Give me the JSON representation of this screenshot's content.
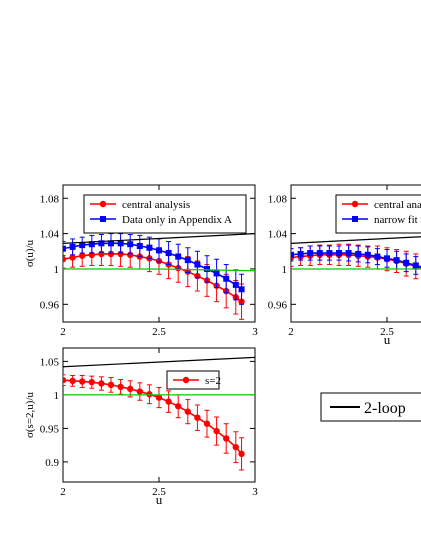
{
  "chart_data": [
    {
      "type": "line",
      "panel": "top-left",
      "xlabel": "",
      "ylabel": "σ(u)/u",
      "xlim": [
        2,
        3
      ],
      "ylim": [
        0.94,
        1.095
      ],
      "xticks": [
        2,
        2.5,
        3
      ],
      "xtick_labels": [
        "2",
        "2.5",
        "3"
      ],
      "yticks": [
        0.96,
        1,
        1.04,
        1.08
      ],
      "ytick_labels": [
        "0.96",
        "1",
        "1.04",
        "1.08"
      ],
      "legend_position": "top",
      "series": [
        {
          "name": "central analysis",
          "color": "#ff0000",
          "marker": "circle",
          "x": [
            2.0,
            2.05,
            2.1,
            2.15,
            2.2,
            2.25,
            2.3,
            2.35,
            2.4,
            2.45,
            2.5,
            2.55,
            2.6,
            2.65,
            2.7,
            2.75,
            2.8,
            2.85,
            2.9,
            2.93
          ],
          "y": [
            1.011,
            1.013,
            1.015,
            1.016,
            1.017,
            1.017,
            1.017,
            1.016,
            1.014,
            1.012,
            1.009,
            1.005,
            1.001,
            0.997,
            0.992,
            0.987,
            0.981,
            0.975,
            0.968,
            0.963
          ],
          "err": [
            0.01,
            0.011,
            0.012,
            0.012,
            0.013,
            0.013,
            0.014,
            0.014,
            0.014,
            0.015,
            0.015,
            0.016,
            0.016,
            0.017,
            0.017,
            0.018,
            0.018,
            0.019,
            0.019,
            0.02
          ]
        },
        {
          "name": "Data only in Appendix A",
          "color": "#0000ff",
          "marker": "square",
          "x": [
            2.0,
            2.05,
            2.1,
            2.15,
            2.2,
            2.25,
            2.3,
            2.35,
            2.4,
            2.45,
            2.5,
            2.55,
            2.6,
            2.65,
            2.7,
            2.75,
            2.8,
            2.85,
            2.9,
            2.93
          ],
          "y": [
            1.023,
            1.025,
            1.027,
            1.028,
            1.029,
            1.029,
            1.029,
            1.028,
            1.026,
            1.024,
            1.021,
            1.018,
            1.014,
            1.01,
            1.005,
            1.0,
            0.995,
            0.989,
            0.982,
            0.977
          ],
          "err": [
            0.008,
            0.009,
            0.009,
            0.01,
            0.01,
            0.011,
            0.011,
            0.011,
            0.012,
            0.012,
            0.013,
            0.013,
            0.014,
            0.014,
            0.015,
            0.015,
            0.016,
            0.016,
            0.017,
            0.017
          ]
        },
        {
          "name": "",
          "color": "#000000",
          "marker": "none",
          "x": [
            2.0,
            3.0
          ],
          "y": [
            1.029,
            1.04
          ]
        },
        {
          "name": "",
          "color": "#00cc00",
          "marker": "none",
          "x": [
            2.0,
            2.5,
            3.0
          ],
          "y": [
            1.0,
            1.0,
            0.998
          ]
        }
      ]
    },
    {
      "type": "line",
      "panel": "top-right",
      "xlabel": "u",
      "ylabel": "",
      "xlim": [
        2,
        3
      ],
      "ylim": [
        0.94,
        1.095
      ],
      "xticks": [
        2,
        2.5
      ],
      "xtick_labels": [
        "2",
        "2.5"
      ],
      "yticks": [
        0.96,
        1,
        1.04,
        1.08
      ],
      "ytick_labels": [
        "0.96",
        "1",
        "1.04",
        "1.08"
      ],
      "legend_position": "top-right",
      "series": [
        {
          "name": "central analysis",
          "color": "#ff0000",
          "marker": "circle",
          "x": [
            2.0,
            2.05,
            2.1,
            2.15,
            2.2,
            2.25,
            2.3,
            2.35,
            2.4,
            2.45,
            2.5,
            2.55,
            2.6,
            2.65,
            2.7
          ],
          "y": [
            1.013,
            1.014,
            1.015,
            1.016,
            1.016,
            1.016,
            1.016,
            1.015,
            1.014,
            1.013,
            1.011,
            1.009,
            1.006,
            1.003,
            1.0
          ],
          "err": [
            0.01,
            0.01,
            0.011,
            0.011,
            0.011,
            0.012,
            0.012,
            0.012,
            0.012,
            0.013,
            0.013,
            0.013,
            0.014,
            0.014,
            0.014
          ]
        },
        {
          "name": "narrow fit r",
          "color": "#0000ff",
          "marker": "square",
          "x": [
            2.0,
            2.05,
            2.1,
            2.15,
            2.2,
            2.25,
            2.3,
            2.35,
            2.4,
            2.45,
            2.5,
            2.55,
            2.6,
            2.65,
            2.7
          ],
          "y": [
            1.016,
            1.017,
            1.018,
            1.018,
            1.018,
            1.018,
            1.018,
            1.017,
            1.016,
            1.014,
            1.012,
            1.01,
            1.007,
            1.004,
            1.001
          ],
          "err": [
            0.007,
            0.007,
            0.008,
            0.008,
            0.008,
            0.008,
            0.009,
            0.009,
            0.009,
            0.009,
            0.01,
            0.01,
            0.01,
            0.01,
            0.011
          ]
        },
        {
          "name": "",
          "color": "#000000",
          "marker": "none",
          "x": [
            2.0,
            3.0
          ],
          "y": [
            1.029,
            1.04
          ]
        },
        {
          "name": "",
          "color": "#00cc00",
          "marker": "none",
          "x": [
            2.0,
            3.0
          ],
          "y": [
            1.0,
            1.0
          ]
        }
      ]
    },
    {
      "type": "line",
      "panel": "bottom-left",
      "xlabel": "u",
      "ylabel": "σ(s=2,u)/u",
      "xlim": [
        2,
        3
      ],
      "ylim": [
        0.87,
        1.07
      ],
      "xticks": [
        2,
        2.5,
        3
      ],
      "xtick_labels": [
        "2",
        "2.5",
        "3"
      ],
      "yticks": [
        0.9,
        0.95,
        1,
        1.05
      ],
      "ytick_labels": [
        "0.9",
        "0.95",
        "1",
        "1.05"
      ],
      "legend_position": "top-right",
      "series": [
        {
          "name": "s=2",
          "color": "#ff0000",
          "marker": "circle",
          "x": [
            2.0,
            2.05,
            2.1,
            2.15,
            2.2,
            2.25,
            2.3,
            2.35,
            2.4,
            2.45,
            2.5,
            2.55,
            2.6,
            2.65,
            2.7,
            2.75,
            2.8,
            2.85,
            2.9,
            2.93
          ],
          "y": [
            1.022,
            1.021,
            1.02,
            1.019,
            1.017,
            1.015,
            1.012,
            1.009,
            1.005,
            1.001,
            0.996,
            0.99,
            0.983,
            0.975,
            0.966,
            0.957,
            0.946,
            0.935,
            0.922,
            0.912
          ],
          "err": [
            0.008,
            0.008,
            0.009,
            0.009,
            0.01,
            0.011,
            0.011,
            0.012,
            0.013,
            0.014,
            0.015,
            0.016,
            0.017,
            0.018,
            0.019,
            0.02,
            0.021,
            0.022,
            0.023,
            0.024
          ]
        },
        {
          "name": "",
          "color": "#000000",
          "marker": "none",
          "x": [
            2.0,
            3.0
          ],
          "y": [
            1.042,
            1.056
          ]
        },
        {
          "name": "",
          "color": "#00cc00",
          "marker": "none",
          "x": [
            2.0,
            3.0
          ],
          "y": [
            1.0,
            1.0
          ]
        }
      ]
    }
  ],
  "legend_box": {
    "label": "2-loop",
    "line_color": "#000000"
  }
}
